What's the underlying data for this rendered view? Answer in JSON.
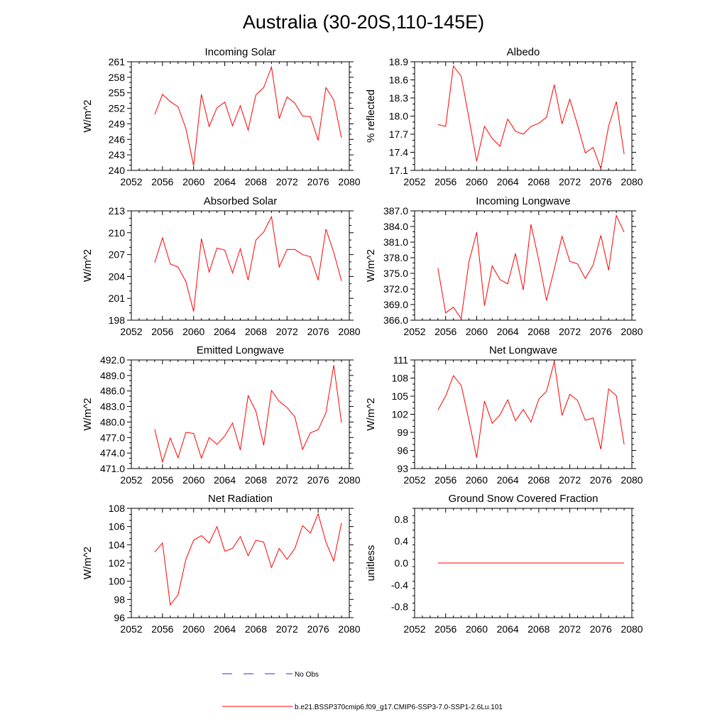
{
  "title": "Australia (30-20S,110-145E)",
  "legend": [
    {
      "label": "No Obs",
      "color": "#2b2bd8",
      "style": "dashed"
    },
    {
      "label": "b.e21.BSSP370cmip6.f09_g17.CMIP6-SSP3-7.0-SSP1-2.6Lu.101",
      "color": "#ff0000",
      "style": "solid"
    }
  ],
  "chart_data": [
    {
      "type": "line",
      "title": "Incoming Solar",
      "ylabel": "W/m^2",
      "xlim": [
        2052,
        2080
      ],
      "xticks": [
        "2052",
        "2056",
        "2060",
        "2064",
        "2068",
        "2072",
        "2076",
        "2080"
      ],
      "ylim": [
        240,
        261
      ],
      "yticks": [
        "240",
        "243",
        "246",
        "249",
        "252",
        "255",
        "258",
        "261"
      ],
      "x": [
        2055,
        2056,
        2057,
        2058,
        2059,
        2060,
        2061,
        2062,
        2063,
        2064,
        2065,
        2066,
        2067,
        2068,
        2069,
        2070,
        2071,
        2072,
        2073,
        2074,
        2075,
        2076,
        2077,
        2078,
        2079
      ],
      "series": [
        {
          "color": "#ff0000",
          "values": [
            250.8,
            254.7,
            253.3,
            252.3,
            248.1,
            240.9,
            254.7,
            248.5,
            252.1,
            253.2,
            248.6,
            252.5,
            247.8,
            254.6,
            256.0,
            260.0,
            250.0,
            254.2,
            253.0,
            250.5,
            250.4,
            245.8,
            256.0,
            253.6,
            246.3
          ]
        }
      ]
    },
    {
      "type": "line",
      "title": "Albedo",
      "ylabel": "% reflected",
      "xlim": [
        2052,
        2080
      ],
      "xticks": [
        "2052",
        "2056",
        "2060",
        "2064",
        "2068",
        "2072",
        "2076",
        "2080"
      ],
      "ylim": [
        17.1,
        18.9
      ],
      "yticks": [
        "17.1",
        "17.4",
        "17.7",
        "18.0",
        "18.3",
        "18.6",
        "18.9"
      ],
      "x": [
        2055,
        2056,
        2057,
        2058,
        2059,
        2060,
        2061,
        2062,
        2063,
        2064,
        2065,
        2066,
        2067,
        2068,
        2069,
        2070,
        2071,
        2072,
        2073,
        2074,
        2075,
        2076,
        2077,
        2078,
        2079
      ],
      "series": [
        {
          "color": "#ff0000",
          "values": [
            17.86,
            17.83,
            18.83,
            18.66,
            17.97,
            17.25,
            17.83,
            17.63,
            17.5,
            17.95,
            17.75,
            17.7,
            17.83,
            17.88,
            17.98,
            18.52,
            17.87,
            18.28,
            17.85,
            17.39,
            17.48,
            17.13,
            17.83,
            18.24,
            17.37
          ]
        }
      ]
    },
    {
      "type": "line",
      "title": "Absorbed Solar",
      "ylabel": "W/m^2",
      "xlim": [
        2052,
        2080
      ],
      "xticks": [
        "2052",
        "2056",
        "2060",
        "2064",
        "2068",
        "2072",
        "2076",
        "2080"
      ],
      "ylim": [
        198,
        213
      ],
      "yticks": [
        "198",
        "201",
        "204",
        "207",
        "210",
        "213"
      ],
      "x": [
        2055,
        2056,
        2057,
        2058,
        2059,
        2060,
        2061,
        2062,
        2063,
        2064,
        2065,
        2066,
        2067,
        2068,
        2069,
        2070,
        2071,
        2072,
        2073,
        2074,
        2075,
        2076,
        2077,
        2078,
        2079
      ],
      "series": [
        {
          "color": "#ff0000",
          "values": [
            205.9,
            209.3,
            205.7,
            205.3,
            203.3,
            199.2,
            209.2,
            204.6,
            207.9,
            207.6,
            204.5,
            207.8,
            203.5,
            209.0,
            210.1,
            212.2,
            205.3,
            207.7,
            207.7,
            207.0,
            206.7,
            203.5,
            210.5,
            207.3,
            203.4
          ]
        }
      ]
    },
    {
      "type": "line",
      "title": "Incoming Longwave",
      "ylabel": "W/m^2",
      "xlim": [
        2052,
        2080
      ],
      "xticks": [
        "2052",
        "2056",
        "2060",
        "2064",
        "2068",
        "2072",
        "2076",
        "2080"
      ],
      "ylim": [
        366.0,
        387.0
      ],
      "yticks": [
        "366.0",
        "369.0",
        "372.0",
        "375.0",
        "378.0",
        "381.0",
        "384.0",
        "387.0"
      ],
      "x": [
        2055,
        2056,
        2057,
        2058,
        2059,
        2060,
        2061,
        2062,
        2063,
        2064,
        2065,
        2066,
        2067,
        2068,
        2069,
        2070,
        2071,
        2072,
        2073,
        2074,
        2075,
        2076,
        2077,
        2078,
        2079
      ],
      "series": [
        {
          "color": "#ff0000",
          "values": [
            376.0,
            367.4,
            368.5,
            366.3,
            377.2,
            382.9,
            368.8,
            376.4,
            373.8,
            373.0,
            378.8,
            371.8,
            384.4,
            377.5,
            369.8,
            375.8,
            382.1,
            377.3,
            376.8,
            374.0,
            376.6,
            382.3,
            375.6,
            386.1,
            382.9
          ]
        }
      ]
    },
    {
      "type": "line",
      "title": "Emitted Longwave",
      "ylabel": "W/m^2",
      "xlim": [
        2052,
        2080
      ],
      "xticks": [
        "2052",
        "2056",
        "2060",
        "2064",
        "2068",
        "2072",
        "2076",
        "2080"
      ],
      "ylim": [
        471.0,
        492.0
      ],
      "yticks": [
        "471.0",
        "474.0",
        "477.0",
        "480.0",
        "483.0",
        "486.0",
        "489.0",
        "492.0"
      ],
      "x": [
        2055,
        2056,
        2057,
        2058,
        2059,
        2060,
        2061,
        2062,
        2063,
        2064,
        2065,
        2066,
        2067,
        2068,
        2069,
        2070,
        2071,
        2072,
        2073,
        2074,
        2075,
        2076,
        2077,
        2078,
        2079
      ],
      "series": [
        {
          "color": "#ff0000",
          "values": [
            478.6,
            472.3,
            476.9,
            473.1,
            478.0,
            477.8,
            473.0,
            477.0,
            475.7,
            477.3,
            479.8,
            474.6,
            485.1,
            482.1,
            475.5,
            486.1,
            484.0,
            482.8,
            481.0,
            474.7,
            477.9,
            478.5,
            481.8,
            491.0,
            479.9
          ]
        }
      ]
    },
    {
      "type": "line",
      "title": "Net Longwave",
      "ylabel": "W/m^2",
      "xlim": [
        2052,
        2080
      ],
      "xticks": [
        "2052",
        "2056",
        "2060",
        "2064",
        "2068",
        "2072",
        "2076",
        "2080"
      ],
      "ylim": [
        93,
        111
      ],
      "yticks": [
        "93",
        "96",
        "99",
        "102",
        "105",
        "108",
        "111"
      ],
      "x": [
        2055,
        2056,
        2057,
        2058,
        2059,
        2060,
        2061,
        2062,
        2063,
        2064,
        2065,
        2066,
        2067,
        2068,
        2069,
        2070,
        2071,
        2072,
        2073,
        2074,
        2075,
        2076,
        2077,
        2078,
        2079
      ],
      "series": [
        {
          "color": "#ff0000",
          "values": [
            102.7,
            105.0,
            108.4,
            106.8,
            101.0,
            94.8,
            104.2,
            100.5,
            101.9,
            104.4,
            100.9,
            102.8,
            100.7,
            104.5,
            105.8,
            110.7,
            101.8,
            105.3,
            104.3,
            101.0,
            101.4,
            96.2,
            106.2,
            105.1,
            97.0
          ]
        }
      ]
    },
    {
      "type": "line",
      "title": "Net Radiation",
      "ylabel": "W/m^2",
      "xlim": [
        2052,
        2080
      ],
      "xticks": [
        "2052",
        "2056",
        "2060",
        "2064",
        "2068",
        "2072",
        "2076",
        "2080"
      ],
      "ylim": [
        96,
        108
      ],
      "yticks": [
        "96",
        "98",
        "100",
        "102",
        "104",
        "106",
        "108"
      ],
      "x": [
        2055,
        2056,
        2057,
        2058,
        2059,
        2060,
        2061,
        2062,
        2063,
        2064,
        2065,
        2066,
        2067,
        2068,
        2069,
        2070,
        2071,
        2072,
        2073,
        2074,
        2075,
        2076,
        2077,
        2078,
        2079
      ],
      "series": [
        {
          "color": "#ff0000",
          "values": [
            103.2,
            104.2,
            97.4,
            98.5,
            102.4,
            104.5,
            105.0,
            104.2,
            106.0,
            103.3,
            103.6,
            104.9,
            102.8,
            104.5,
            104.3,
            101.5,
            103.6,
            102.4,
            103.6,
            106.1,
            105.3,
            107.4,
            104.3,
            102.2,
            106.4
          ]
        }
      ]
    },
    {
      "type": "line",
      "title": "Ground Snow Covered Fraction",
      "ylabel": "unitless",
      "xlim": [
        2052,
        2080
      ],
      "xticks": [
        "2052",
        "2056",
        "2060",
        "2064",
        "2068",
        "2072",
        "2076",
        "2080"
      ],
      "ylim": [
        -1.0,
        1.0
      ],
      "yticks": [
        "-0.8",
        "-0.4",
        "0.0",
        "0.4",
        "0.8"
      ],
      "ytick_values": [
        -0.8,
        -0.4,
        0.0,
        0.4,
        0.8
      ],
      "x": [
        2055,
        2056,
        2057,
        2058,
        2059,
        2060,
        2061,
        2062,
        2063,
        2064,
        2065,
        2066,
        2067,
        2068,
        2069,
        2070,
        2071,
        2072,
        2073,
        2074,
        2075,
        2076,
        2077,
        2078,
        2079
      ],
      "series": [
        {
          "color": "#ff0000",
          "values": [
            0,
            0,
            0,
            0,
            0,
            0,
            0,
            0,
            0,
            0,
            0,
            0,
            0,
            0,
            0,
            0,
            0,
            0,
            0,
            0,
            0,
            0,
            0,
            0,
            0
          ]
        }
      ]
    }
  ]
}
